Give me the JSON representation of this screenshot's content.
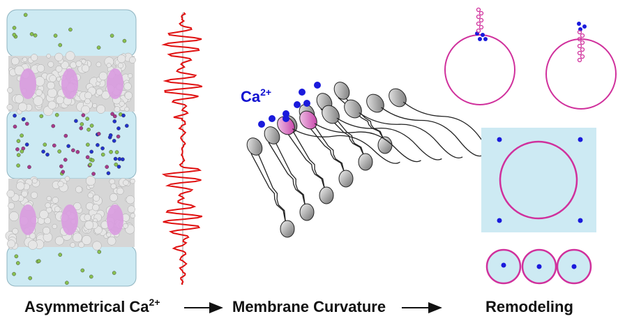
{
  "figure": {
    "ion_label": {
      "base": "Ca",
      "sup": "2+"
    },
    "captions": [
      {
        "text": "Asymmetrical Ca",
        "sup": "2+"
      },
      {
        "text": "Membrane Curvature"
      },
      {
        "text": "Remodeling"
      }
    ]
  }
}
